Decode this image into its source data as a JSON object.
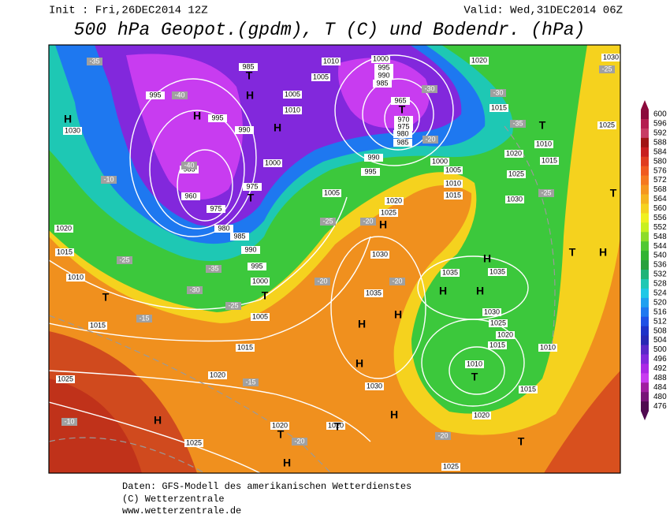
{
  "header": {
    "init": "Init : Fri,26DEC2014 12Z",
    "valid": "Valid: Wed,31DEC2014 06Z",
    "title": "500 hPa Geopot.(gpdm), T (C) und Bodendr. (hPa)"
  },
  "footer": [
    "Daten: GFS-Modell des amerikanischen Wetterdienstes",
    "(C) Wetterzentrale",
    "www.wetterzentrale.de"
  ],
  "colorbar": {
    "labels": [
      600,
      596,
      592,
      588,
      584,
      580,
      576,
      572,
      568,
      564,
      560,
      556,
      552,
      548,
      544,
      540,
      536,
      532,
      528,
      524,
      520,
      516,
      512,
      508,
      504,
      500,
      496,
      492,
      488,
      484,
      480,
      476
    ],
    "colors": [
      "#8b0a3c",
      "#b41e50",
      "#c83c64",
      "#a01414",
      "#c81e1e",
      "#e03c1e",
      "#f05a1e",
      "#f5781e",
      "#f5961e",
      "#f5b41e",
      "#f5d21e",
      "#f0f01e",
      "#c8f01e",
      "#8cdc28",
      "#50c832",
      "#32b432",
      "#28a03c",
      "#1eb478",
      "#1ec8b4",
      "#1ec8e6",
      "#1ea0f0",
      "#1e78f0",
      "#1e50e6",
      "#1e32c8",
      "#2828b4",
      "#5a28c8",
      "#8228dc",
      "#aa28e6",
      "#c83cf0",
      "#a01ea0",
      "#781478",
      "#500a50"
    ]
  },
  "map": {
    "pressure_labels": [
      "985",
      "1005",
      "1010",
      "1000",
      "995",
      "990",
      "985",
      "965",
      "970",
      "975",
      "980",
      "985",
      "1020",
      "1030",
      "995",
      "995",
      "990",
      "1005",
      "1010",
      "1000",
      "985",
      "975",
      "960",
      "975",
      "980",
      "985",
      "990",
      "995",
      "1000",
      "1005",
      "1015",
      "1020",
      "1025",
      "1030",
      "1020",
      "1015",
      "1010",
      "1015",
      "990",
      "995",
      "1000",
      "1005",
      "1010",
      "1015",
      "1005",
      "1020",
      "1025",
      "1030",
      "1035",
      "1035",
      "1035",
      "1030",
      "1025",
      "1020",
      "1015",
      "1010",
      "1010",
      "1015",
      "1020",
      "1030",
      "1025",
      "1020",
      "1020",
      "1025",
      "1015",
      "1010",
      "1015",
      "1020",
      "1025",
      "1030",
      "1025"
    ],
    "centers": [
      "H",
      "H",
      "H",
      "H",
      "H",
      "H",
      "H",
      "H",
      "H",
      "H",
      "H",
      "H",
      "H",
      "H",
      "H",
      "T",
      "T",
      "T",
      "T",
      "T",
      "T",
      "T",
      "T",
      "T",
      "T",
      "T",
      "T"
    ],
    "temperature_labels": [
      "-35",
      "-40",
      "-40",
      "-35",
      "-30",
      "-25",
      "-20",
      "-20",
      "-15",
      "-15",
      "-10",
      "-10",
      "-25",
      "-20",
      "-20",
      "-30",
      "-35",
      "-25",
      "-25",
      "-30",
      "-20",
      "-25",
      "-20"
    ]
  }
}
